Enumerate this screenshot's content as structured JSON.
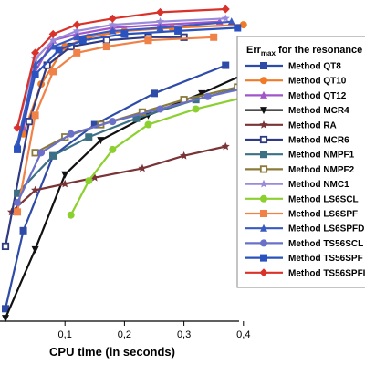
{
  "chart_data": {
    "type": "line",
    "xlabel": "CPU time (in seconds)",
    "ylabel": "",
    "xlim": [
      0,
      0.45
    ],
    "ylim": [
      0,
      1
    ],
    "x_ticks": [
      "0,1",
      "0,2",
      "0,3",
      "0,4"
    ],
    "legend_title": "Errmax for the resonance",
    "legend_title_main": "Err",
    "legend_title_sub": "max",
    "legend_title_rest": " for the resonance",
    "legend_position": "right",
    "series": [
      {
        "name": "Method QT8",
        "color": "#2E4BA8",
        "marker": "square",
        "x": [
          0.0,
          0.03,
          0.08,
          0.15,
          0.25,
          0.37
        ],
        "y": [
          0.04,
          0.29,
          0.53,
          0.63,
          0.73,
          0.82
        ]
      },
      {
        "name": "Method QT10",
        "color": "#F07A28",
        "marker": "circle",
        "x": [
          0.03,
          0.06,
          0.1,
          0.14,
          0.2,
          0.28,
          0.4
        ],
        "y": [
          0.6,
          0.76,
          0.88,
          0.91,
          0.93,
          0.94,
          0.95
        ]
      },
      {
        "name": "Method QT12",
        "color": "#A055C8",
        "marker": "triangle",
        "x": [
          0.03,
          0.05,
          0.08,
          0.12,
          0.18,
          0.26,
          0.36
        ],
        "y": [
          0.62,
          0.8,
          0.9,
          0.92,
          0.94,
          0.95,
          0.96
        ]
      },
      {
        "name": "Method MCR4",
        "color": "#111111",
        "marker": "triangle-down",
        "x": [
          0.0,
          0.05,
          0.1,
          0.16,
          0.24,
          0.33,
          0.4
        ],
        "y": [
          0.01,
          0.23,
          0.47,
          0.58,
          0.66,
          0.73,
          0.79
        ]
      },
      {
        "name": "Method RA",
        "color": "#7A3438",
        "marker": "star",
        "x": [
          0.01,
          0.05,
          0.1,
          0.15,
          0.23,
          0.3,
          0.37
        ],
        "y": [
          0.35,
          0.42,
          0.44,
          0.46,
          0.49,
          0.53,
          0.56
        ]
      },
      {
        "name": "Method MCR6",
        "color": "#2F3A80",
        "marker": "square-open",
        "x": [
          0.0,
          0.04,
          0.07,
          0.11,
          0.17,
          0.24,
          0.3
        ],
        "y": [
          0.24,
          0.64,
          0.82,
          0.88,
          0.9,
          0.91,
          0.91
        ]
      },
      {
        "name": "Method NMPF1",
        "color": "#3C7085",
        "marker": "square",
        "x": [
          0.02,
          0.08,
          0.14,
          0.22,
          0.32,
          0.4
        ],
        "y": [
          0.41,
          0.53,
          0.59,
          0.65,
          0.71,
          0.75
        ]
      },
      {
        "name": "Method NMPF2",
        "color": "#8B7A3A",
        "marker": "square-open",
        "x": [
          0.05,
          0.1,
          0.16,
          0.23,
          0.3,
          0.39
        ],
        "y": [
          0.54,
          0.59,
          0.63,
          0.67,
          0.71,
          0.75
        ]
      },
      {
        "name": "Method NMC1",
        "color": "#9A8ADA",
        "marker": "star",
        "x": [
          0.02,
          0.05,
          0.08,
          0.12,
          0.18,
          0.26,
          0.37
        ],
        "y": [
          0.62,
          0.84,
          0.9,
          0.93,
          0.95,
          0.96,
          0.97
        ]
      },
      {
        "name": "Method LS6SCL",
        "color": "#8CD030",
        "marker": "circle",
        "x": [
          0.11,
          0.14,
          0.18,
          0.24,
          0.32,
          0.43
        ],
        "y": [
          0.34,
          0.45,
          0.55,
          0.63,
          0.68,
          0.73
        ]
      },
      {
        "name": "Method LS6SPF",
        "color": "#F08248",
        "marker": "square",
        "x": [
          0.02,
          0.05,
          0.08,
          0.12,
          0.17,
          0.24,
          0.35
        ],
        "y": [
          0.35,
          0.66,
          0.8,
          0.86,
          0.88,
          0.9,
          0.91
        ]
      },
      {
        "name": "Method LS6SPFD",
        "color": "#3A5AC0",
        "marker": "triangle",
        "x": [
          0.02,
          0.05,
          0.08,
          0.12,
          0.18,
          0.26,
          0.38
        ],
        "y": [
          0.57,
          0.82,
          0.88,
          0.91,
          0.93,
          0.94,
          0.96
        ]
      },
      {
        "name": "Method TS56SCL",
        "color": "#6A70C8",
        "marker": "circle",
        "x": [
          0.02,
          0.06,
          0.11,
          0.18,
          0.26,
          0.34,
          0.41
        ],
        "y": [
          0.38,
          0.54,
          0.6,
          0.64,
          0.68,
          0.72,
          0.75
        ]
      },
      {
        "name": "Method TS56SPF",
        "color": "#2A52BE",
        "marker": "square",
        "x": [
          0.02,
          0.05,
          0.09,
          0.13,
          0.2,
          0.29,
          0.39
        ],
        "y": [
          0.55,
          0.79,
          0.87,
          0.9,
          0.92,
          0.93,
          0.94
        ]
      },
      {
        "name": "Method TS56SPFI",
        "color": "#D9322A",
        "marker": "diamond",
        "x": [
          0.02,
          0.05,
          0.08,
          0.12,
          0.18,
          0.26,
          0.37
        ],
        "y": [
          0.62,
          0.86,
          0.92,
          0.95,
          0.97,
          0.99,
          1.0
        ]
      }
    ]
  }
}
